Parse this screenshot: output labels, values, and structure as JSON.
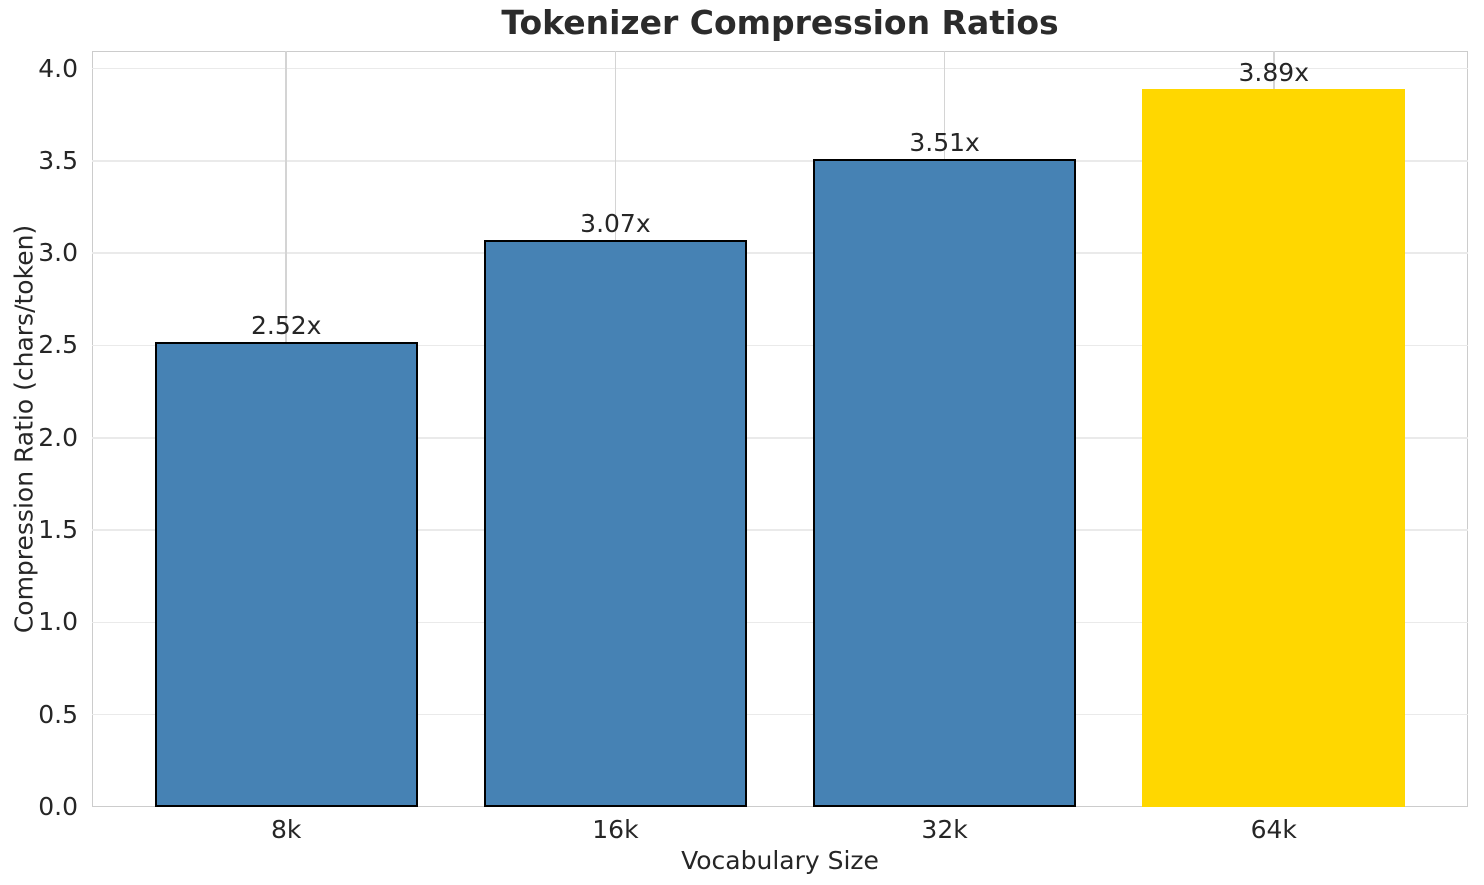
{
  "chart_data": {
    "type": "bar",
    "title": "Tokenizer Compression Ratios",
    "xlabel": "Vocabulary Size",
    "ylabel": "Compression Ratio (chars/token)",
    "categories": [
      "8k",
      "16k",
      "32k",
      "64k"
    ],
    "values": [
      2.52,
      3.07,
      3.51,
      3.89
    ],
    "bar_labels": [
      "2.52x",
      "3.07x",
      "3.51x",
      "3.89x"
    ],
    "bar_colors": [
      "#4682B4",
      "#4682B4",
      "#4682B4",
      "#FFD700"
    ],
    "bar_edge_colors": [
      "#000000",
      "#000000",
      "#000000",
      "none"
    ],
    "ytick_labels": [
      "0.0",
      "0.5",
      "1.0",
      "1.5",
      "2.0",
      "2.5",
      "3.0",
      "3.5",
      "4.0"
    ],
    "yticks": [
      0.0,
      0.5,
      1.0,
      1.5,
      2.0,
      2.5,
      3.0,
      3.5,
      4.0
    ],
    "ylim": [
      0,
      4.095
    ],
    "grid": true,
    "legend": "none",
    "colors": {
      "background": "#FFFFFF",
      "text": "#262626",
      "spine": "#CCCCCC",
      "grid_horizontal": "#EAEAEA",
      "grid_vertical": "#D4D4D4",
      "highlight_bar": "#FFD700",
      "default_bar": "#4682B4"
    }
  }
}
